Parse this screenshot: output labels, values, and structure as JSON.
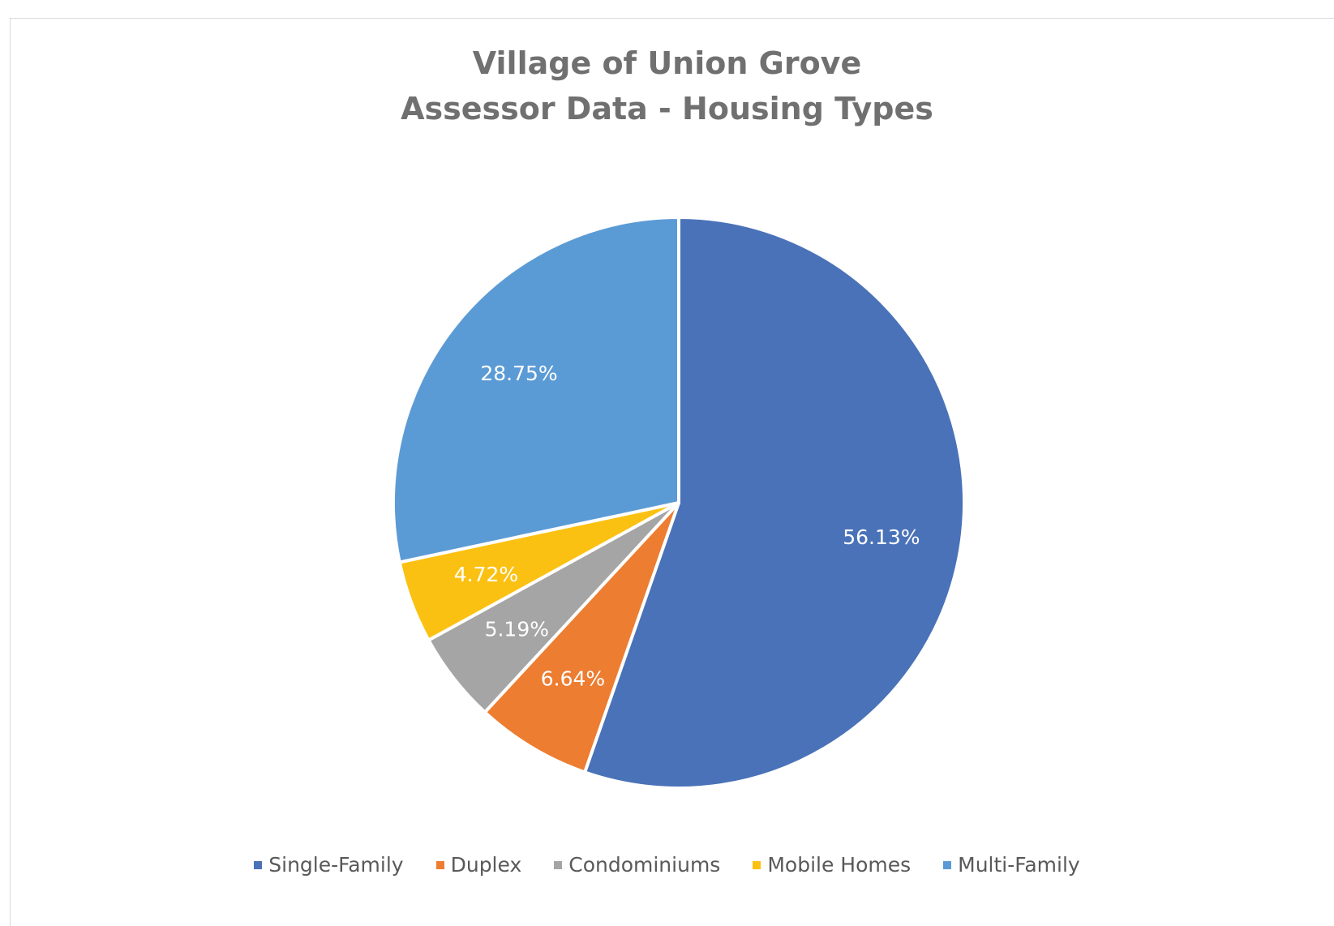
{
  "chart_data": {
    "type": "pie",
    "title": "Village of Union Grove Assessor Data - Housing Types",
    "title_lines": [
      "Village of Union Grove",
      "Assessor Data - Housing Types"
    ],
    "categories": [
      "Single-Family",
      "Duplex",
      "Condominiums",
      "Mobile Homes",
      "Multi-Family"
    ],
    "values": [
      56.13,
      6.64,
      5.19,
      4.72,
      28.75
    ],
    "labels": [
      "56.13%",
      "6.64%",
      "5.19%",
      "4.72%",
      "28.75%"
    ],
    "colors": [
      "#4a72b8",
      "#ed7d31",
      "#a5a5a5",
      "#fbc112",
      "#5b9bd5"
    ],
    "start_angle": "12 o'clock",
    "direction": "clockwise",
    "legend_position": "bottom"
  }
}
